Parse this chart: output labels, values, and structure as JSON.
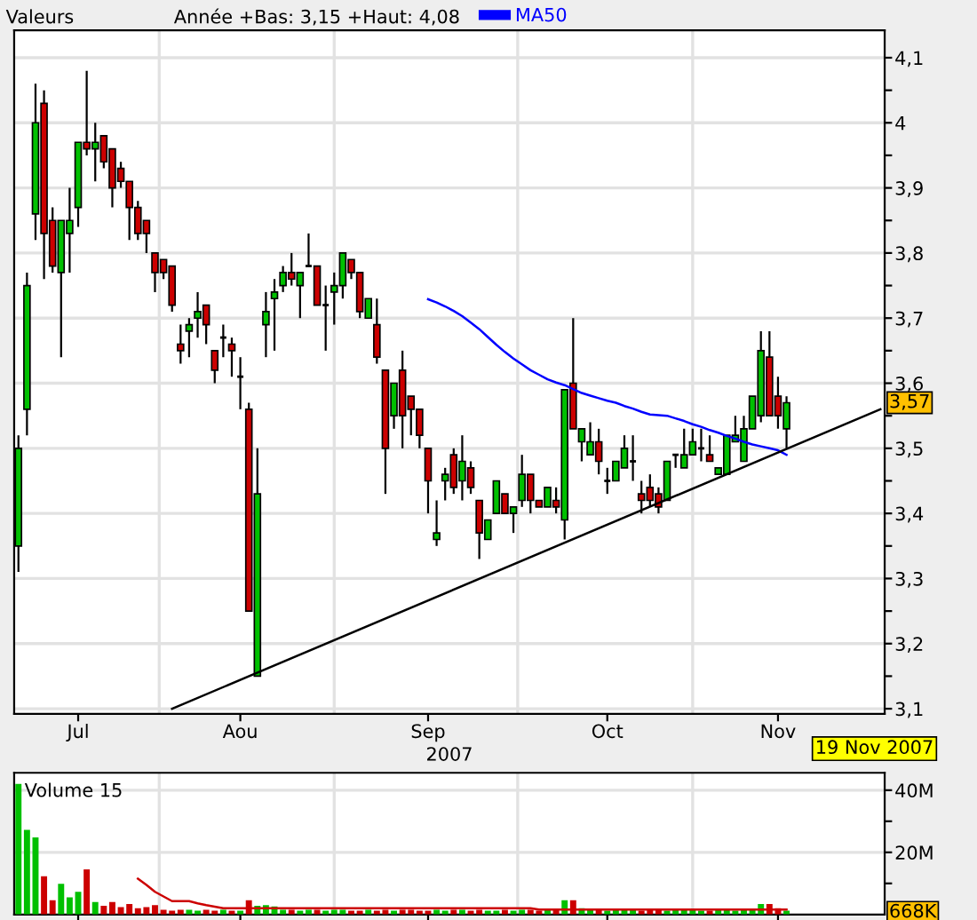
{
  "chart_data": [
    {
      "type": "candlestick",
      "xlabel": "2007",
      "categories": [
        null,
        null,
        null,
        null,
        null,
        null,
        null,
        "Jul",
        null,
        null,
        null,
        null,
        null,
        null,
        null,
        null,
        null,
        null,
        null,
        null,
        null,
        null,
        null,
        null,
        null,
        null,
        "Aou",
        null,
        null,
        null,
        null,
        null,
        null,
        null,
        null,
        null,
        null,
        null,
        null,
        null,
        null,
        null,
        null,
        null,
        null,
        null,
        null,
        null,
        "Sep",
        null,
        null,
        null,
        null,
        null,
        null,
        null,
        null,
        null,
        null,
        null,
        null,
        null,
        null,
        null,
        null,
        null,
        null,
        null,
        null,
        "Oct",
        null,
        null,
        null,
        null,
        null,
        null,
        null,
        null,
        null,
        null,
        null,
        null,
        null,
        null,
        null,
        null,
        null,
        null,
        null,
        "Nov",
        null,
        null,
        null,
        null,
        null,
        null,
        null,
        null,
        null,
        null,
        null,
        null
      ],
      "ohlc": [
        [
          3.35,
          3.52,
          3.31,
          3.5
        ],
        [
          3.56,
          3.77,
          3.52,
          3.75
        ],
        [
          3.86,
          4.06,
          3.82,
          4.0
        ],
        [
          4.03,
          4.05,
          3.76,
          3.83
        ],
        [
          3.85,
          3.87,
          3.77,
          3.78
        ],
        [
          3.77,
          3.85,
          3.64,
          3.85
        ],
        [
          3.83,
          3.9,
          3.77,
          3.85
        ],
        [
          3.87,
          3.97,
          3.84,
          3.97
        ],
        [
          3.97,
          4.08,
          3.95,
          3.96
        ],
        [
          3.96,
          4.0,
          3.91,
          3.97
        ],
        [
          3.98,
          3.98,
          3.93,
          3.94
        ],
        [
          3.96,
          3.96,
          3.87,
          3.9
        ],
        [
          3.93,
          3.94,
          3.9,
          3.91
        ],
        [
          3.91,
          3.91,
          3.82,
          3.87
        ],
        [
          3.87,
          3.88,
          3.82,
          3.83
        ],
        [
          3.85,
          3.85,
          3.8,
          3.83
        ],
        [
          3.8,
          3.8,
          3.74,
          3.77
        ],
        [
          3.79,
          3.79,
          3.76,
          3.77
        ],
        [
          3.78,
          3.78,
          3.71,
          3.72
        ],
        [
          3.66,
          3.69,
          3.63,
          3.65
        ],
        [
          3.68,
          3.7,
          3.64,
          3.69
        ],
        [
          3.7,
          3.74,
          3.67,
          3.71
        ],
        [
          3.72,
          3.72,
          3.66,
          3.69
        ],
        [
          3.65,
          3.65,
          3.6,
          3.62
        ],
        [
          3.67,
          3.69,
          3.64,
          3.67
        ],
        [
          3.66,
          3.67,
          3.61,
          3.65
        ],
        [
          3.61,
          3.64,
          3.56,
          3.61
        ],
        [
          3.56,
          3.57,
          3.25,
          3.25
        ],
        [
          3.15,
          3.5,
          3.15,
          3.43
        ],
        [
          3.69,
          3.74,
          3.64,
          3.71
        ],
        [
          3.73,
          3.76,
          3.65,
          3.74
        ],
        [
          3.75,
          3.78,
          3.74,
          3.77
        ],
        [
          3.77,
          3.8,
          3.75,
          3.76
        ],
        [
          3.75,
          3.77,
          3.7,
          3.77
        ],
        [
          3.78,
          3.83,
          3.78,
          3.78
        ],
        [
          3.78,
          3.78,
          3.72,
          3.72
        ],
        [
          3.72,
          3.75,
          3.65,
          3.72
        ],
        [
          3.74,
          3.77,
          3.69,
          3.75
        ],
        [
          3.75,
          3.8,
          3.73,
          3.8
        ],
        [
          3.79,
          3.79,
          3.76,
          3.77
        ],
        [
          3.77,
          3.77,
          3.7,
          3.71
        ],
        [
          3.7,
          3.73,
          3.7,
          3.73
        ],
        [
          3.69,
          3.73,
          3.63,
          3.64
        ],
        [
          3.62,
          3.62,
          3.43,
          3.5
        ],
        [
          3.55,
          3.6,
          3.53,
          3.6
        ],
        [
          3.62,
          3.65,
          3.5,
          3.55
        ],
        [
          3.58,
          3.58,
          3.52,
          3.56
        ],
        [
          3.56,
          3.56,
          3.5,
          3.52
        ],
        [
          3.5,
          3.5,
          3.4,
          3.45
        ],
        [
          3.36,
          3.42,
          3.35,
          3.37
        ],
        [
          3.45,
          3.47,
          3.42,
          3.46
        ],
        [
          3.49,
          3.5,
          3.43,
          3.44
        ],
        [
          3.45,
          3.52,
          3.42,
          3.48
        ],
        [
          3.47,
          3.48,
          3.43,
          3.44
        ],
        [
          3.42,
          3.42,
          3.33,
          3.37
        ],
        [
          3.36,
          3.39,
          3.36,
          3.39
        ],
        [
          3.4,
          3.45,
          3.4,
          3.45
        ],
        [
          3.43,
          3.43,
          3.4,
          3.4
        ],
        [
          3.4,
          3.41,
          3.37,
          3.41
        ],
        [
          3.42,
          3.49,
          3.41,
          3.46
        ],
        [
          3.46,
          3.46,
          3.4,
          3.42
        ],
        [
          3.42,
          3.42,
          3.41,
          3.41
        ],
        [
          3.41,
          3.44,
          3.41,
          3.44
        ],
        [
          3.42,
          3.44,
          3.4,
          3.41
        ],
        [
          3.39,
          3.59,
          3.36,
          3.59
        ],
        [
          3.6,
          3.7,
          3.53,
          3.53
        ],
        [
          3.51,
          3.53,
          3.48,
          3.53
        ],
        [
          3.49,
          3.54,
          3.49,
          3.51
        ],
        [
          3.51,
          3.53,
          3.46,
          3.48
        ],
        [
          3.45,
          3.47,
          3.43,
          3.45
        ],
        [
          3.45,
          3.48,
          3.45,
          3.48
        ],
        [
          3.47,
          3.52,
          3.47,
          3.5
        ],
        [
          3.48,
          3.52,
          3.45,
          3.48
        ],
        [
          3.43,
          3.45,
          3.4,
          3.42
        ],
        [
          3.44,
          3.46,
          3.41,
          3.42
        ],
        [
          3.43,
          3.44,
          3.4,
          3.41
        ],
        [
          3.42,
          3.48,
          3.42,
          3.48
        ],
        [
          3.49,
          3.49,
          3.47,
          3.49
        ],
        [
          3.47,
          3.53,
          3.47,
          3.49
        ],
        [
          3.49,
          3.53,
          3.49,
          3.51
        ],
        [
          3.5,
          3.53,
          3.48,
          3.5
        ],
        [
          3.49,
          3.52,
          3.48,
          3.48
        ],
        [
          3.46,
          3.47,
          3.46,
          3.47
        ],
        [
          3.46,
          3.52,
          3.46,
          3.52
        ],
        [
          3.51,
          3.55,
          3.51,
          3.52
        ],
        [
          3.48,
          3.55,
          3.48,
          3.53
        ],
        [
          3.53,
          3.58,
          3.53,
          3.58
        ],
        [
          3.55,
          3.68,
          3.54,
          3.65
        ],
        [
          3.64,
          3.68,
          3.55,
          3.55
        ],
        [
          3.58,
          3.61,
          3.53,
          3.55
        ],
        [
          3.53,
          3.58,
          3.5,
          3.57
        ],
        null,
        null,
        null,
        null,
        null,
        null,
        null,
        null,
        null,
        null,
        null
      ],
      "colors": [
        "#00c000",
        "#00c000",
        "#00c000",
        "#cc0000",
        "#cc0000",
        "#00c000",
        "#00c000",
        "#00c000",
        "#cc0000",
        "#00c000",
        "#cc0000",
        "#cc0000",
        "#cc0000",
        "#cc0000",
        "#cc0000",
        "#cc0000",
        "#cc0000",
        "#cc0000",
        "#cc0000",
        "#cc0000",
        "#00c000",
        "#00c000",
        "#cc0000",
        "#cc0000",
        "#000000",
        "#cc0000",
        "#000000",
        "#cc0000",
        "#00c000",
        "#00c000",
        "#00c000",
        "#00c000",
        "#cc0000",
        "#00c000",
        "#000000",
        "#cc0000",
        "#000000",
        "#00c000",
        "#00c000",
        "#cc0000",
        "#cc0000",
        "#00c000",
        "#cc0000",
        "#cc0000",
        "#00c000",
        "#cc0000",
        "#cc0000",
        "#cc0000",
        "#cc0000",
        "#00c000",
        "#00c000",
        "#cc0000",
        "#00c000",
        "#cc0000",
        "#cc0000",
        "#00c000",
        "#00c000",
        "#cc0000",
        "#00c000",
        "#00c000",
        "#cc0000",
        "#cc0000",
        "#00c000",
        "#cc0000",
        "#00c000",
        "#cc0000",
        "#00c000",
        "#00c000",
        "#cc0000",
        "#000000",
        "#00c000",
        "#00c000",
        "#000000",
        "#cc0000",
        "#cc0000",
        "#cc0000",
        "#00c000",
        "#000000",
        "#00c000",
        "#00c000",
        "#000000",
        "#cc0000",
        "#00c000",
        "#00c000",
        "#00c000",
        "#00c000",
        "#00c000",
        "#00c000",
        "#cc0000",
        "#cc0000",
        "#00c000",
        null,
        null,
        null,
        null,
        null,
        null,
        null,
        null,
        null,
        null,
        null
      ],
      "series": [
        {
          "type": "line",
          "name": "MA50",
          "color": "#0000ff",
          "values": [
            null,
            null,
            null,
            null,
            null,
            null,
            null,
            null,
            null,
            null,
            null,
            null,
            null,
            null,
            null,
            null,
            null,
            null,
            null,
            null,
            null,
            null,
            null,
            null,
            null,
            null,
            null,
            null,
            null,
            null,
            null,
            null,
            null,
            null,
            null,
            null,
            null,
            null,
            null,
            null,
            null,
            null,
            null,
            null,
            null,
            null,
            null,
            null,
            3.729,
            3.724,
            3.718,
            3.711,
            3.703,
            3.693,
            3.683,
            3.671,
            3.659,
            3.648,
            3.638,
            3.629,
            3.62,
            3.613,
            3.606,
            3.601,
            3.597,
            3.591,
            3.585,
            3.581,
            3.577,
            3.573,
            3.57,
            3.565,
            3.561,
            3.556,
            3.552,
            3.551,
            3.55,
            3.546,
            3.542,
            3.537,
            3.533,
            3.528,
            3.524,
            3.519,
            3.515,
            3.51,
            3.506,
            3.503,
            3.5,
            3.497,
            3.49,
            null,
            null,
            null,
            null,
            null,
            null,
            null,
            null,
            null,
            null,
            null
          ]
        },
        {
          "type": "line",
          "color": "#000000",
          "values": [
            null,
            null,
            null,
            null,
            null,
            null,
            null,
            null,
            null,
            null,
            null,
            null,
            null,
            null,
            null,
            null,
            null,
            null,
            3.1,
            null,
            null,
            null,
            null,
            null,
            null,
            null,
            null,
            null,
            null,
            null,
            null,
            null,
            null,
            null,
            null,
            null,
            null,
            null,
            null,
            null,
            null,
            null,
            null,
            null,
            null,
            null,
            null,
            null,
            null,
            null,
            null,
            null,
            null,
            null,
            null,
            null,
            null,
            null,
            null,
            null,
            null,
            null,
            null,
            null,
            null,
            null,
            null,
            null,
            null,
            null,
            null,
            null,
            null,
            null,
            null,
            null,
            null,
            null,
            null,
            null,
            null,
            null,
            null,
            null,
            null,
            null,
            null,
            null,
            null,
            null,
            null,
            null,
            null,
            null,
            null,
            null,
            null,
            null,
            null,
            null,
            null,
            3.56
          ]
        }
      ],
      "ylim": [
        3.092,
        4.142
      ],
      "yticks": [
        {
          "value": 3.1,
          "label": "3,1"
        },
        {
          "value": 3.15,
          "label": null
        },
        {
          "value": 3.2,
          "label": "3,2"
        },
        {
          "value": 3.25,
          "label": null
        },
        {
          "value": 3.3,
          "label": "3,3"
        },
        {
          "value": 3.35,
          "label": null
        },
        {
          "value": 3.4,
          "label": "3,4"
        },
        {
          "value": 3.45,
          "label": null
        },
        {
          "value": 3.5,
          "label": "3,5"
        },
        {
          "value": 3.55,
          "label": null
        },
        {
          "value": 3.6,
          "label": "3,6"
        },
        {
          "value": 3.65,
          "label": null
        },
        {
          "value": 3.7,
          "label": "3,7"
        },
        {
          "value": 3.75,
          "label": null
        },
        {
          "value": 3.8,
          "label": "3,8"
        },
        {
          "value": 3.85,
          "label": null
        },
        {
          "value": 3.9,
          "label": "3,9"
        },
        {
          "value": 3.95,
          "label": null
        },
        {
          "value": 4.0,
          "label": "4"
        },
        {
          "value": 4.05,
          "label": null
        },
        {
          "value": 4.1,
          "label": "4,1"
        }
      ],
      "grid": "xy",
      "legend": "top",
      "annotations": [
        "Valeurs",
        "Année +Bas: 3,15 +Haut: 4,08",
        "19 Nov 2007",
        {
          "text": "3,57",
          "y": 3.57
        }
      ]
    },
    {
      "type": "bar",
      "title": "Volume 15",
      "categories": [
        null,
        null,
        null,
        null,
        null,
        null,
        null,
        null,
        null,
        null,
        null,
        null,
        null,
        null,
        null,
        null,
        null,
        null,
        null,
        null,
        null,
        null,
        null,
        null,
        null,
        null,
        null,
        null,
        null,
        null,
        null,
        null,
        null,
        null,
        null,
        null,
        null,
        null,
        null,
        null,
        null,
        null,
        null,
        null,
        null,
        null,
        null,
        null,
        null,
        null,
        null,
        null,
        null,
        null,
        null,
        null,
        null,
        null,
        null,
        null,
        null,
        null,
        null,
        null,
        null,
        null,
        null,
        null,
        null,
        null,
        null,
        null,
        null,
        null,
        null,
        null,
        null,
        null,
        null,
        null,
        null,
        null,
        null,
        null,
        null,
        null,
        null,
        null,
        null,
        null,
        null,
        null,
        null,
        null,
        null,
        null,
        null,
        null,
        null,
        null,
        null,
        null
      ],
      "values": [
        42.0,
        27.2,
        24.8,
        12.3,
        4.6,
        9.9,
        5.5,
        7.3,
        14.5,
        4.0,
        2.8,
        4.0,
        2.4,
        3.4,
        2.0,
        2.4,
        3.0,
        1.5,
        1.2,
        1.5,
        1.5,
        1.2,
        1.5,
        1.2,
        1.5,
        1.2,
        1.2,
        4.6,
        2.8,
        3.0,
        2.6,
        1.5,
        1.5,
        1.2,
        1.5,
        1.5,
        1.2,
        1.5,
        1.5,
        1.2,
        1.2,
        1.5,
        1.2,
        1.5,
        1.2,
        1.5,
        1.5,
        1.2,
        1.2,
        1.5,
        1.2,
        1.5,
        1.5,
        1.2,
        1.5,
        1.2,
        1.2,
        1.5,
        1.2,
        1.5,
        1.5,
        1.2,
        1.5,
        1.5,
        4.6,
        4.6,
        2.0,
        1.5,
        1.5,
        1.2,
        1.5,
        1.5,
        1.5,
        1.2,
        1.5,
        1.5,
        1.2,
        1.5,
        1.5,
        1.5,
        1.2,
        1.2,
        1.5,
        1.5,
        1.2,
        1.5,
        1.5,
        3.4,
        3.4,
        2.0,
        1.2,
        null,
        null,
        null,
        null,
        null,
        null,
        null,
        null,
        null,
        null,
        null
      ],
      "colors": [
        "#00c000",
        "#00c000",
        "#00c000",
        "#cc0000",
        "#cc0000",
        "#00c000",
        "#00c000",
        "#00c000",
        "#cc0000",
        "#00c000",
        "#cc0000",
        "#cc0000",
        "#cc0000",
        "#cc0000",
        "#cc0000",
        "#cc0000",
        "#cc0000",
        "#cc0000",
        "#cc0000",
        "#cc0000",
        "#00c000",
        "#00c000",
        "#cc0000",
        "#cc0000",
        "#00c000",
        "#cc0000",
        "#00c000",
        "#cc0000",
        "#00c000",
        "#00c000",
        "#00c000",
        "#00c000",
        "#cc0000",
        "#00c000",
        "#00c000",
        "#cc0000",
        "#00c000",
        "#00c000",
        "#00c000",
        "#cc0000",
        "#cc0000",
        "#00c000",
        "#cc0000",
        "#cc0000",
        "#00c000",
        "#cc0000",
        "#cc0000",
        "#cc0000",
        "#cc0000",
        "#00c000",
        "#00c000",
        "#cc0000",
        "#00c000",
        "#cc0000",
        "#cc0000",
        "#00c000",
        "#00c000",
        "#cc0000",
        "#00c000",
        "#00c000",
        "#cc0000",
        "#cc0000",
        "#00c000",
        "#cc0000",
        "#00c000",
        "#cc0000",
        "#00c000",
        "#00c000",
        "#cc0000",
        "#00c000",
        "#00c000",
        "#00c000",
        "#00c000",
        "#cc0000",
        "#cc0000",
        "#cc0000",
        "#00c000",
        "#00c000",
        "#00c000",
        "#00c000",
        "#00c000",
        "#cc0000",
        "#00c000",
        "#00c000",
        "#00c000",
        "#00c000",
        "#00c000",
        "#00c000",
        "#cc0000",
        "#cc0000",
        "#00c000",
        null,
        null,
        null,
        null,
        null,
        null,
        null,
        null,
        null,
        null,
        null
      ],
      "series": [
        {
          "type": "line",
          "color": "#cc0000",
          "values": [
            null,
            null,
            null,
            null,
            null,
            null,
            null,
            null,
            null,
            null,
            null,
            null,
            null,
            null,
            11.5,
            9.5,
            7.3,
            5.8,
            4.3,
            4.3,
            4.3,
            3.6,
            3.0,
            2.5,
            2.0,
            2.0,
            2.0,
            2.0,
            2.0,
            2.0,
            2.0,
            2.0,
            2.0,
            2.0,
            2.0,
            2.0,
            2.0,
            2.0,
            2.0,
            2.0,
            2.0,
            2.0,
            2.0,
            2.0,
            2.0,
            2.0,
            2.0,
            2.0,
            2.0,
            2.0,
            2.0,
            2.0,
            2.0,
            2.0,
            2.0,
            2.0,
            2.0,
            2.0,
            2.0,
            2.0,
            2.0,
            1.6,
            1.6,
            1.6,
            1.6,
            1.6,
            1.6,
            1.6,
            1.6,
            1.6,
            1.6,
            1.6,
            1.6,
            1.6,
            1.6,
            1.6,
            1.6,
            1.6,
            1.6,
            1.6,
            1.6,
            1.6,
            1.6,
            1.6,
            1.6,
            1.6,
            1.6,
            1.6,
            1.6,
            1.6,
            1.6,
            null,
            null,
            null,
            null,
            null,
            null,
            null,
            null,
            null,
            null,
            null
          ]
        }
      ],
      "ylim": [
        0,
        45.6
      ],
      "yticks": [
        {
          "value": 10,
          "label": null
        },
        {
          "value": 20,
          "label": "20M"
        },
        {
          "value": 30,
          "label": null
        },
        {
          "value": 40,
          "label": "40M"
        }
      ],
      "grid": "xy",
      "tick_labels": "y",
      "annotations": [
        {
          "text": "668K",
          "y": 0.668
        }
      ]
    }
  ]
}
